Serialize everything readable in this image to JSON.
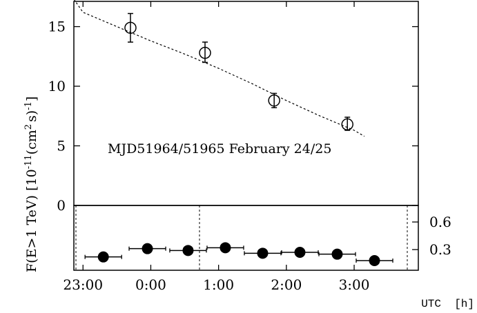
{
  "chart_data": [
    {
      "type": "scatter",
      "ylabel": "F(E>1 TeV) [10",
      "ylabel_exp1": "-11",
      "ylabel_mid": "(cm",
      "ylabel_exp2": "2",
      "ylabel_tail": "s)",
      "ylabel_exp3": "-1",
      "ylabel_close": "]",
      "annotation": "MJD51964/51965 February 24/25",
      "ylim": [
        0,
        17
      ],
      "yticks": [
        0,
        5,
        10,
        15
      ],
      "xlim": [
        22.5,
        27.15
      ],
      "grid": false,
      "series": [
        {
          "marker": "open-circle",
          "x": [
            23.7,
            24.8,
            25.82,
            26.9
          ],
          "y": [
            14.9,
            12.8,
            8.8,
            6.8
          ],
          "yerr_low": [
            1.2,
            0.8,
            0.6,
            0.5
          ],
          "yerr_high": [
            1.2,
            0.9,
            0.6,
            0.6
          ]
        }
      ],
      "fit": {
        "style": "dashed",
        "x": [
          22.6,
          23.0,
          23.5,
          24.0,
          24.5,
          25.0,
          25.5,
          26.0,
          26.5,
          27.0,
          27.15
        ],
        "y": [
          17.3,
          16.2,
          15.0,
          13.8,
          12.7,
          11.5,
          10.2,
          8.8,
          7.5,
          6.3,
          5.8
        ]
      }
    },
    {
      "type": "scatter",
      "ylim": [
        0.07,
        0.72
      ],
      "yticks": [
        0.3,
        0.6
      ],
      "ytick_labels": [
        "0.3",
        "0.6"
      ],
      "xticks": [
        23,
        24,
        25,
        26,
        27
      ],
      "xtick_labels": [
        "23:00",
        "0:00",
        "1:00",
        "2:00",
        "3:00"
      ],
      "xlabel": "UTC  [h]",
      "series": [
        {
          "marker": "filled-circle",
          "x": [
            23.3,
            23.95,
            24.55,
            25.1,
            25.65,
            26.2,
            26.75,
            27.3
          ],
          "y": [
            0.22,
            0.31,
            0.29,
            0.32,
            0.26,
            0.27,
            0.25,
            0.18
          ],
          "yerr": [
            0.03,
            0.02,
            0.02,
            0.05,
            0.02,
            0.03,
            0.03,
            0.03
          ],
          "x_half_width": [
            0.27,
            0.27,
            0.27,
            0.27,
            0.27,
            0.27,
            0.27,
            0.27
          ]
        }
      ],
      "vlines_dashed": [
        22.52,
        25.05,
        28.2
      ]
    }
  ]
}
